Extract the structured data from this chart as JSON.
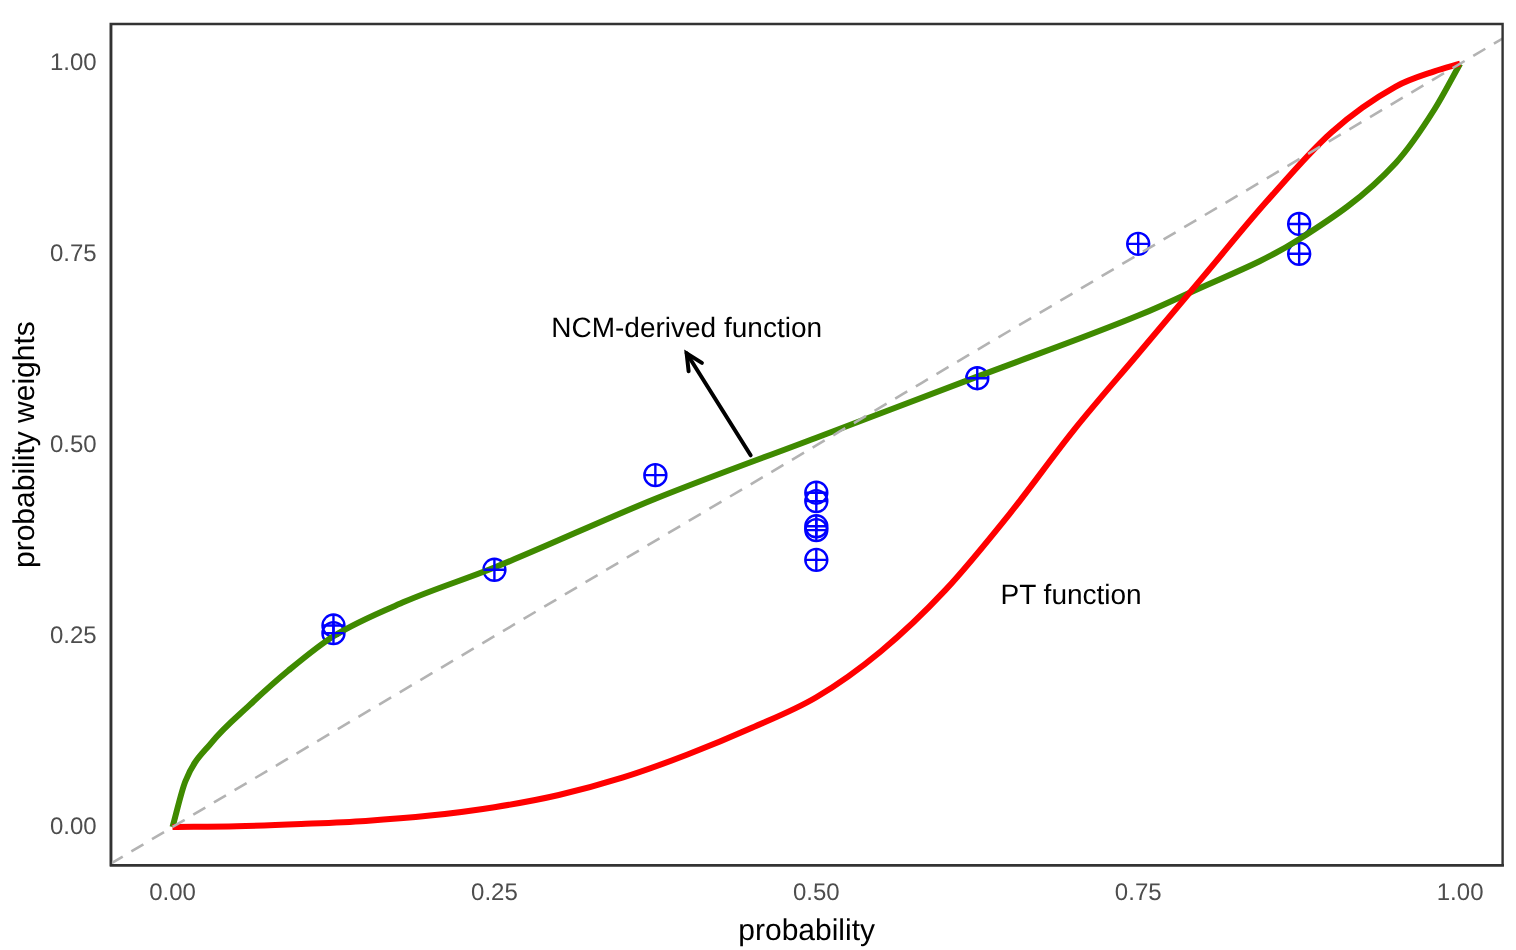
{
  "chart_data": {
    "type": "line",
    "xlabel": "probability",
    "ylabel": "probability weights",
    "xlim": [
      -0.048,
      1.033
    ],
    "ylim": [
      -0.05,
      1.052
    ],
    "xticks": [
      {
        "value": 0,
        "label": "0.00"
      },
      {
        "value": 0.25,
        "label": "0.25"
      },
      {
        "value": 0.5,
        "label": "0.50"
      },
      {
        "value": 0.75,
        "label": "0.75"
      },
      {
        "value": 1,
        "label": "1.00"
      }
    ],
    "yticks": [
      {
        "value": 0,
        "label": "0.00"
      },
      {
        "value": 0.25,
        "label": "0.25"
      },
      {
        "value": 0.5,
        "label": "0.50"
      },
      {
        "value": 0.75,
        "label": "0.75"
      },
      {
        "value": 1,
        "label": "1.00"
      }
    ],
    "legend": false,
    "series": [
      {
        "type": "line",
        "color": "#b3b3b3",
        "line_style": "dashed",
        "x": [
          -0.048,
          1.033
        ],
        "values": [
          -0.048,
          1.033
        ]
      },
      {
        "color": "#ff0000",
        "x": [
          0,
          0.05,
          0.1,
          0.15,
          0.2,
          0.25,
          0.3,
          0.35,
          0.4,
          0.45,
          0.5,
          0.55,
          0.6,
          0.65,
          0.7,
          0.75,
          0.8,
          0.85,
          0.9,
          0.95,
          0.98,
          1
        ],
        "values": [
          0,
          0.001,
          0.004,
          0.008,
          0.015,
          0.026,
          0.042,
          0.065,
          0.095,
          0.13,
          0.17,
          0.23,
          0.31,
          0.41,
          0.52,
          0.62,
          0.72,
          0.82,
          0.91,
          0.97,
          0.99,
          1
        ]
      },
      {
        "color": "#3f8a00",
        "x": [
          0,
          0.01,
          0.03,
          0.06,
          0.09,
          0.125,
          0.18,
          0.25,
          0.375,
          0.5,
          0.625,
          0.75,
          0.79,
          0.875,
          0.95,
          0.98,
          1
        ],
        "values": [
          0,
          0.06,
          0.11,
          0.16,
          0.205,
          0.25,
          0.295,
          0.34,
          0.43,
          0.51,
          0.59,
          0.67,
          0.7,
          0.77,
          0.87,
          0.94,
          1
        ]
      },
      {
        "type": "scatter",
        "color": "#0000ff",
        "marker": "circle",
        "x": [
          0.125,
          0.125,
          0.25,
          0.375,
          0.5,
          0.5,
          0.5,
          0.5,
          0.5,
          0.625,
          0.75,
          0.875,
          0.875
        ],
        "values": [
          0.264,
          0.254,
          0.337,
          0.461,
          0.438,
          0.427,
          0.394,
          0.389,
          0.35,
          0.588,
          0.764,
          0.79,
          0.751
        ]
      }
    ],
    "annotations": [
      {
        "text": "NCM-derived function",
        "x": 0.449,
        "y": 0.487
      },
      "PT function"
    ]
  }
}
